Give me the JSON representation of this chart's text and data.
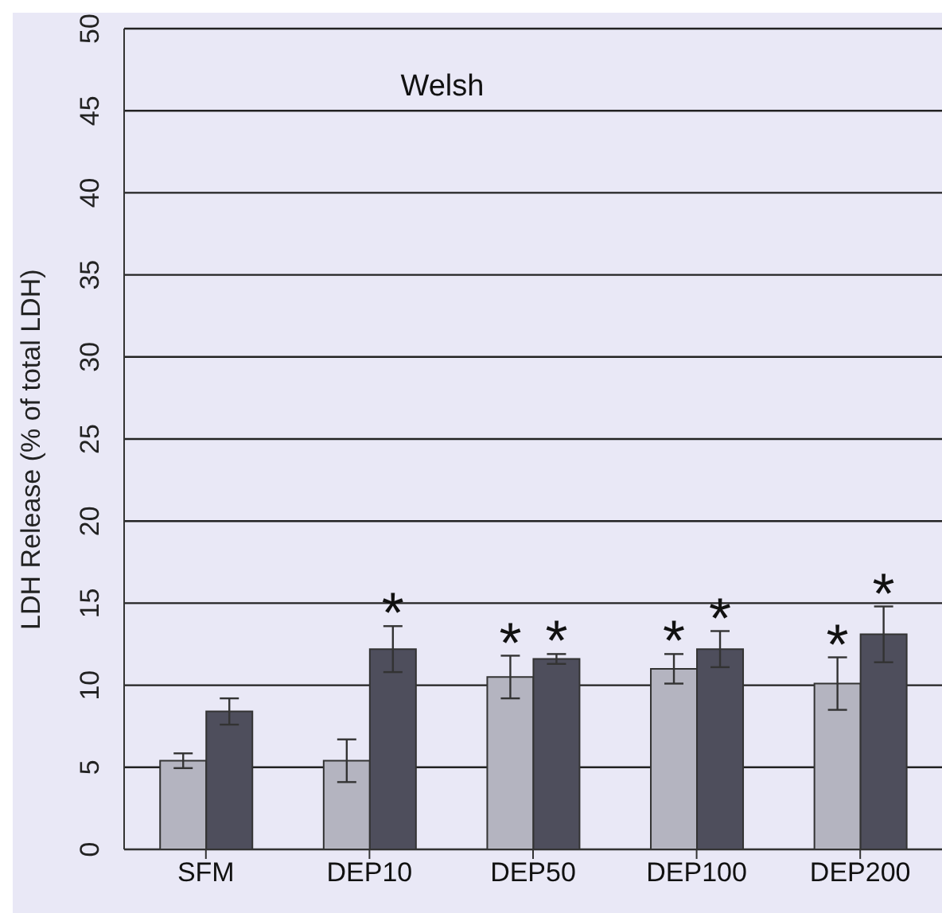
{
  "chart_data": {
    "type": "bar",
    "title": "Welsh",
    "ylabel": "LDH Release (% of total LDH)",
    "categories": [
      "SFM",
      "DEP10",
      "DEP50",
      "DEP100",
      "DEP200"
    ],
    "series": [
      {
        "color": "#b4b4c0",
        "values": [
          5.4,
          5.4,
          10.5,
          11.0,
          10.1
        ],
        "errors": [
          0.45,
          1.3,
          1.3,
          0.9,
          1.6
        ],
        "value_labels": [
          null,
          null,
          "*",
          "*",
          "*"
        ]
      },
      {
        "color": "#4e4e5c",
        "values": [
          8.4,
          12.2,
          11.6,
          12.2,
          13.1
        ],
        "errors": [
          0.8,
          1.4,
          0.3,
          1.1,
          1.7
        ],
        "value_labels": [
          null,
          "*",
          "*",
          "*",
          "*"
        ]
      }
    ],
    "ylim": [
      0,
      50
    ],
    "yticks": [
      0,
      5,
      10,
      15,
      20,
      25,
      30,
      35,
      40,
      45,
      50
    ],
    "grid": "y",
    "legend": false
  }
}
